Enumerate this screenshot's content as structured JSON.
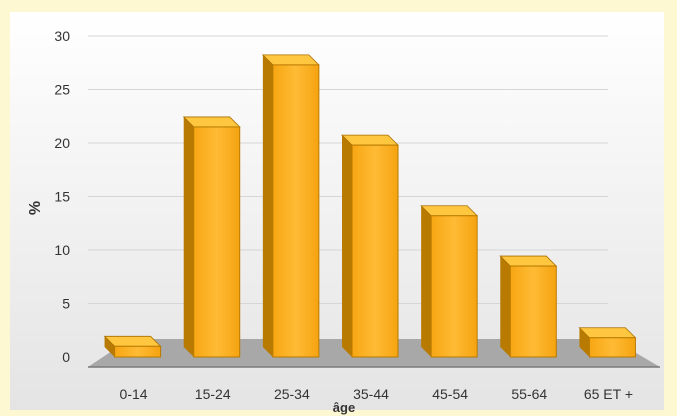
{
  "chart_data": {
    "type": "bar",
    "categories": [
      "0-14",
      "15-24",
      "25-34",
      "35-44",
      "45-54",
      "55-64",
      "65 ET +"
    ],
    "values": [
      1,
      21.5,
      27.3,
      19.8,
      13.2,
      8.5,
      1.8
    ],
    "xlabel": "âge",
    "ylabel": "%",
    "ylim": [
      0,
      30
    ],
    "y_ticks": [
      "0",
      "5",
      "10",
      "15",
      "20",
      "25",
      "30"
    ],
    "grid": true,
    "legend": "none"
  },
  "colors": {
    "bar_front": "#ffb020",
    "bar_side": "#b87a00",
    "bar_top": "#ffc640",
    "floor": "#a8a8a8",
    "grid": "#d6d6d6"
  }
}
